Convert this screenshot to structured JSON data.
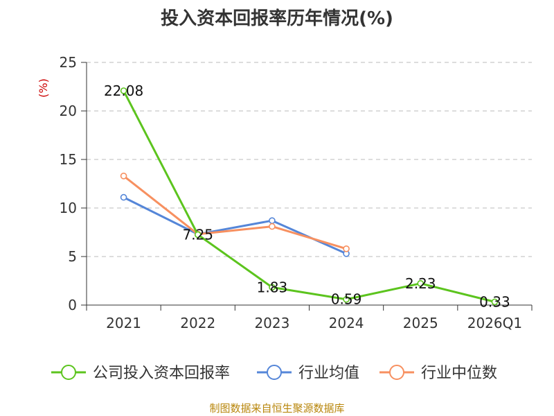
{
  "chart_data": {
    "type": "line",
    "title": "投入资本回报率历年情况(%)",
    "ylabel": "(%)",
    "xlabel": "",
    "categories": [
      "2021",
      "2022",
      "2023",
      "2024",
      "2025",
      "2026Q1"
    ],
    "ylim": [
      0,
      25
    ],
    "yticks": [
      0,
      5,
      10,
      15,
      20,
      25
    ],
    "grid": true,
    "legend_position": "bottom",
    "series": [
      {
        "name": "公司投入资本回报率",
        "color": "#5cc41e",
        "values": [
          22.08,
          7.25,
          1.83,
          0.59,
          2.23,
          0.33
        ],
        "labels": [
          "22.08",
          "7.25",
          "1.83",
          "0.59",
          "2.23",
          "0.33"
        ]
      },
      {
        "name": "行业均值",
        "color": "#5586d8",
        "values": [
          11.1,
          7.3,
          8.7,
          5.3,
          null,
          null
        ]
      },
      {
        "name": "行业中位数",
        "color": "#f79060",
        "values": [
          13.3,
          7.3,
          8.1,
          5.8,
          null,
          null
        ]
      }
    ]
  },
  "source": "制图数据来自恒生聚源数据库"
}
